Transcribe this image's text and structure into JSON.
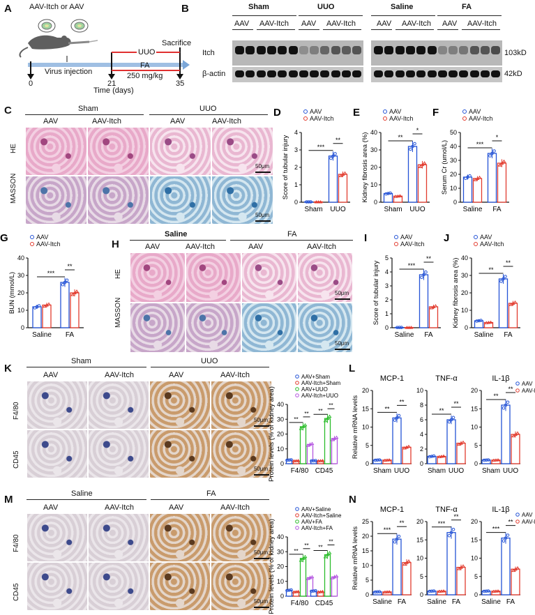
{
  "panels": {
    "A": {
      "letter": "A",
      "group_label": "AAV-Itch or  AAV",
      "uuo": "UUO",
      "fa": "FA",
      "dose": "250 mg/kg",
      "sacrifice": "Sacrifice",
      "virus": "Virus injection",
      "ticks": [
        "0",
        "21",
        "35"
      ],
      "axis_label": "Time (days)"
    },
    "B": {
      "letter": "B",
      "group_left": "Sham",
      "group_uuo": "UUO",
      "group_saline": "Saline",
      "group_fa": "FA",
      "sub": [
        "AAV",
        "AAV-Itch",
        "AAV",
        "AAV-Itch",
        "AAV",
        "AAV-Itch",
        "AAV",
        "AAV-Itch"
      ],
      "row1": "Itch",
      "row2": "β-actin",
      "kd1": "103kD",
      "kd2": "42kD"
    },
    "C": {
      "letter": "C",
      "top1": "Sham",
      "top2": "UUO",
      "cols": [
        "AAV",
        "AAV-Itch",
        "AAV",
        "AAV-Itch"
      ],
      "rows": [
        "HE",
        "MASSON"
      ],
      "scale": "50μm"
    },
    "H": {
      "letter": "H",
      "top1": "Saline",
      "top2": "FA",
      "cols": [
        "AAV",
        "AAV-Itch",
        "AAV",
        "AAV-Itch"
      ],
      "rows": [
        "HE",
        "MASSON"
      ],
      "scale": "50μm"
    },
    "K": {
      "letter": "K",
      "top1": "Sham",
      "top2": "UUO",
      "cols": [
        "AAV",
        "AAV-Itch",
        "AAV",
        "AAV-Itch"
      ],
      "rows": [
        "F4/80",
        "CD45"
      ],
      "scale": "50μm"
    },
    "M": {
      "letter": "M",
      "top1": "Saline",
      "top2": "FA",
      "cols": [
        "AAV",
        "AAV-Itch",
        "AAV",
        "AAV-Itch"
      ],
      "rows": [
        "F4/80",
        "CD45"
      ],
      "scale": "50μm"
    },
    "L": {
      "letter": "L",
      "ylabel": "Relative mRNA levels"
    },
    "N": {
      "letter": "N",
      "ylabel": "Relative mRNA levels"
    }
  },
  "colors": {
    "aav": "#2453d6",
    "itch": "#e23b2e",
    "green": "#2bbd2b",
    "purple": "#b455e0"
  },
  "chart_data": [
    {
      "id": "D",
      "type": "bar",
      "ylabel": "Score of tubular injury",
      "categories": [
        "Sham",
        "UUO"
      ],
      "ylim": [
        0,
        4
      ],
      "yticks": [
        0,
        1,
        2,
        3,
        4
      ],
      "series": [
        {
          "name": "AAV",
          "values": [
            0.02,
            2.65
          ]
        },
        {
          "name": "AAV-Itch",
          "values": [
            0.02,
            1.6
          ]
        }
      ],
      "sig": [
        {
          "a": 0,
          "b": 2,
          "t": "***"
        },
        {
          "a": 2,
          "b": 3,
          "t": "**"
        }
      ]
    },
    {
      "id": "E",
      "type": "bar",
      "ylabel": "Kidney fibrosis area (%)",
      "categories": [
        "Sham",
        "UUO"
      ],
      "ylim": [
        0,
        40
      ],
      "yticks": [
        0,
        10,
        20,
        30,
        40
      ],
      "series": [
        {
          "name": "AAV",
          "values": [
            5,
            32
          ]
        },
        {
          "name": "AAV-Itch",
          "values": [
            3.5,
            21.5
          ]
        }
      ],
      "sig": [
        {
          "a": 0,
          "b": 2,
          "t": "**"
        },
        {
          "a": 2,
          "b": 3,
          "t": "*"
        }
      ]
    },
    {
      "id": "F",
      "type": "bar",
      "ylabel": "Serum Cr (umol/L)",
      "categories": [
        "Saline",
        "FA"
      ],
      "ylim": [
        0,
        50
      ],
      "yticks": [
        0,
        10,
        20,
        30,
        40,
        50
      ],
      "series": [
        {
          "name": "AAV",
          "values": [
            18,
            35
          ]
        },
        {
          "name": "AAV-Itch",
          "values": [
            17,
            28
          ]
        }
      ],
      "sig": [
        {
          "a": 0,
          "b": 2,
          "t": "***"
        },
        {
          "a": 2,
          "b": 3,
          "t": "*"
        }
      ]
    },
    {
      "id": "G",
      "type": "bar",
      "ylabel": "BUN (mmol/L)",
      "categories": [
        "Saline",
        "FA"
      ],
      "ylim": [
        0,
        40
      ],
      "yticks": [
        0,
        10,
        20,
        30,
        40
      ],
      "series": [
        {
          "name": "AAV",
          "values": [
            12,
            26
          ]
        },
        {
          "name": "AAV-Itch",
          "values": [
            13,
            20
          ]
        }
      ],
      "sig": [
        {
          "a": 0,
          "b": 2,
          "t": "***"
        },
        {
          "a": 2,
          "b": 3,
          "t": "**"
        }
      ]
    },
    {
      "id": "I",
      "type": "bar",
      "ylabel": "Score of tubular injury",
      "categories": [
        "Saline",
        "FA"
      ],
      "ylim": [
        0,
        5
      ],
      "yticks": [
        0,
        1,
        2,
        3,
        4,
        5
      ],
      "series": [
        {
          "name": "AAV",
          "values": [
            0.02,
            3.8
          ]
        },
        {
          "name": "AAV-Itch",
          "values": [
            0.02,
            1.5
          ]
        }
      ],
      "sig": [
        {
          "a": 0,
          "b": 2,
          "t": "***"
        },
        {
          "a": 2,
          "b": 3,
          "t": "**"
        }
      ]
    },
    {
      "id": "J",
      "type": "bar",
      "ylabel": "Kidney fibrosis area (%)",
      "categories": [
        "Saline",
        "FA"
      ],
      "ylim": [
        0,
        40
      ],
      "yticks": [
        0,
        10,
        20,
        30,
        40
      ],
      "series": [
        {
          "name": "AAV",
          "values": [
            4,
            28
          ]
        },
        {
          "name": "AAV-Itch",
          "values": [
            3,
            14
          ]
        }
      ],
      "sig": [
        {
          "a": 0,
          "b": 2,
          "t": "**"
        },
        {
          "a": 2,
          "b": 3,
          "t": "**"
        }
      ]
    },
    {
      "id": "K",
      "type": "bar",
      "ylabel": "Protein levels (% of kidney area)",
      "categories": [
        "F4/80",
        "CD45"
      ],
      "ylim": [
        0,
        40
      ],
      "yticks": [
        0,
        10,
        20,
        30,
        40
      ],
      "series": [
        {
          "name": "AAV+Sham",
          "values": [
            2.5,
            2
          ]
        },
        {
          "name": "AAV-Itch+Sham",
          "values": [
            2,
            2
          ]
        },
        {
          "name": "AAV+UUO",
          "values": [
            25,
            30.5
          ]
        },
        {
          "name": "AAV-Itch+UUO",
          "values": [
            13,
            17
          ]
        }
      ],
      "sig4": [
        "**",
        "**",
        "**",
        "**"
      ]
    },
    {
      "id": "M",
      "type": "bar",
      "ylabel": "Protein levels (% of kidney area)",
      "categories": [
        "F4/80",
        "CD45"
      ],
      "ylim": [
        0,
        40
      ],
      "yticks": [
        0,
        10,
        20,
        30,
        40
      ],
      "series": [
        {
          "name": "AAV+Saline",
          "values": [
            4,
            3.5
          ]
        },
        {
          "name": "AAV-Itch+Saline",
          "values": [
            3,
            3
          ]
        },
        {
          "name": "AAV+FA",
          "values": [
            25.5,
            28
          ]
        },
        {
          "name": "AAV-Itch+FA",
          "values": [
            12.5,
            13
          ]
        }
      ],
      "sig4": [
        "**",
        "**",
        "**",
        "**"
      ]
    },
    {
      "id": "L1",
      "type": "bar",
      "title": "MCP-1",
      "categories": [
        "Sham",
        "UUO"
      ],
      "ylim": [
        0,
        20
      ],
      "yticks": [
        0,
        5,
        10,
        15,
        20
      ],
      "series": [
        {
          "name": "AAV",
          "values": [
            1,
            12.5
          ]
        },
        {
          "name": "AAV-Itch",
          "values": [
            1,
            4.5
          ]
        }
      ],
      "sig": [
        {
          "a": 0,
          "b": 2,
          "t": "**"
        },
        {
          "a": 2,
          "b": 3,
          "t": "**"
        }
      ]
    },
    {
      "id": "L2",
      "type": "bar",
      "title": "TNF-α",
      "categories": [
        "Sham",
        "UUO"
      ],
      "ylim": [
        0,
        10
      ],
      "yticks": [
        0,
        2,
        4,
        6,
        8,
        10
      ],
      "series": [
        {
          "name": "AAV",
          "values": [
            1,
            6
          ]
        },
        {
          "name": "AAV-Itch",
          "values": [
            1,
            2.8
          ]
        }
      ],
      "sig": [
        {
          "a": 0,
          "b": 2,
          "t": "**"
        },
        {
          "a": 2,
          "b": 3,
          "t": "**"
        }
      ]
    },
    {
      "id": "L3",
      "type": "bar",
      "title": "IL-1β",
      "categories": [
        "Sham",
        "UUO"
      ],
      "ylim": [
        0,
        20
      ],
      "yticks": [
        0,
        5,
        10,
        15,
        20
      ],
      "series": [
        {
          "name": "AAV",
          "values": [
            1,
            16
          ]
        },
        {
          "name": "AAV-Itch",
          "values": [
            1,
            8
          ]
        }
      ],
      "sig": [
        {
          "a": 0,
          "b": 2,
          "t": "**"
        },
        {
          "a": 2,
          "b": 3,
          "t": "**"
        }
      ]
    },
    {
      "id": "N1",
      "type": "bar",
      "title": "MCP-1",
      "categories": [
        "Saline",
        "FA"
      ],
      "ylim": [
        0,
        25
      ],
      "yticks": [
        0,
        5,
        10,
        15,
        20,
        25
      ],
      "series": [
        {
          "name": "AAV",
          "values": [
            1,
            19
          ]
        },
        {
          "name": "AAV-Itch",
          "values": [
            1,
            11
          ]
        }
      ],
      "sig": [
        {
          "a": 0,
          "b": 2,
          "t": "***"
        },
        {
          "a": 2,
          "b": 3,
          "t": "**"
        }
      ]
    },
    {
      "id": "N2",
      "type": "bar",
      "title": "TNF-α",
      "categories": [
        "Saline",
        "FA"
      ],
      "ylim": [
        0,
        20
      ],
      "yticks": [
        0,
        5,
        10,
        15,
        20
      ],
      "series": [
        {
          "name": "AAV",
          "values": [
            1,
            17
          ]
        },
        {
          "name": "AAV-Itch",
          "values": [
            1,
            7.5
          ]
        }
      ],
      "sig": [
        {
          "a": 0,
          "b": 2,
          "t": "***"
        },
        {
          "a": 2,
          "b": 3,
          "t": "**"
        }
      ]
    },
    {
      "id": "N3",
      "type": "bar",
      "title": "IL-1β",
      "categories": [
        "Saline",
        "FA"
      ],
      "ylim": [
        0,
        20
      ],
      "yticks": [
        0,
        5,
        10,
        15,
        20
      ],
      "series": [
        {
          "name": "AAV",
          "values": [
            1,
            15.5
          ]
        },
        {
          "name": "AAV-Itch",
          "values": [
            1,
            7
          ]
        }
      ],
      "sig": [
        {
          "a": 0,
          "b": 2,
          "t": "***"
        },
        {
          "a": 2,
          "b": 3,
          "t": "**"
        }
      ]
    }
  ]
}
